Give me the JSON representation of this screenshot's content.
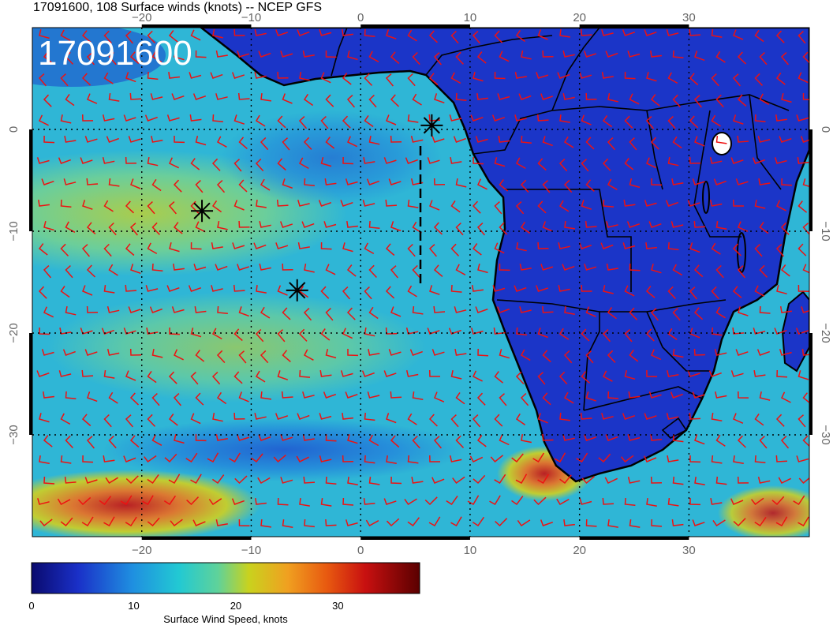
{
  "title": "17091600, 108 Surface winds (knots) -- NCEP GFS",
  "stamp": "17091600",
  "colors": {
    "ocean": "#2fb6d6",
    "land": "#1b35c8",
    "barb": "#ee1111",
    "coast": "#000000",
    "grid": "#000000"
  },
  "axes": {
    "lon_ticks": [
      "−20",
      "−10",
      "0",
      "10",
      "20",
      "30"
    ],
    "lon_values": [
      -20,
      -10,
      0,
      10,
      20,
      30
    ],
    "lat_ticks": [
      "0",
      "−10",
      "−20",
      "−30"
    ],
    "lat_values": [
      0,
      -10,
      -20,
      -30
    ],
    "lon_range": [
      -30,
      41
    ],
    "lat_range": [
      -40,
      10
    ]
  },
  "markers": [
    {
      "symbol": "asterisk",
      "lon": 6.5,
      "lat": 0.4
    },
    {
      "symbol": "asterisk",
      "lon": -14.5,
      "lat": -8.0
    },
    {
      "symbol": "asterisk",
      "lon": -5.8,
      "lat": -15.8
    }
  ],
  "colorbar": {
    "label": "Surface Wind Speed, knots",
    "ticks": [
      "0",
      "10",
      "20",
      "30"
    ],
    "tick_values": [
      0,
      10,
      20,
      30
    ],
    "range": [
      0,
      38
    ]
  }
}
